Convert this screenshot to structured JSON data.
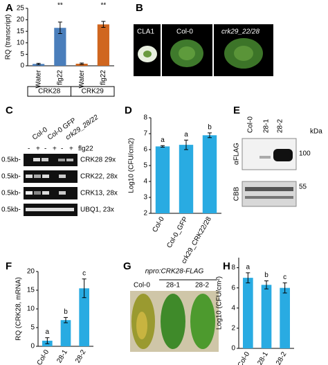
{
  "chart_data": [
    {
      "type": "bar",
      "panel": "A",
      "ylabel": "RQ (transcript)",
      "categories": [
        "Water",
        "flg22",
        "Water",
        "flg22"
      ],
      "groups": [
        "CRK28",
        "CRK29"
      ],
      "values": [
        0.8,
        16.5,
        0.9,
        18
      ],
      "errors": [
        0.3,
        2.5,
        0.3,
        1.3
      ],
      "colors": [
        "#4a7ebb",
        "#4a7ebb",
        "#d0661f",
        "#d0661f"
      ],
      "annotations": [
        {
          "index": 1,
          "text": "**"
        },
        {
          "index": 3,
          "text": "**"
        }
      ],
      "ylim": [
        0,
        25
      ],
      "yticks": [
        0,
        5,
        10,
        15,
        20,
        25
      ]
    },
    {
      "type": "bar",
      "panel": "D",
      "ylabel": "Log10 (CFU/cm2)",
      "categories": [
        "Col-0",
        "Col-0_GFP",
        "crk29_CRK22/28"
      ],
      "values": [
        6.2,
        6.3,
        6.9
      ],
      "errors": [
        0.05,
        0.3,
        0.15
      ],
      "letters": [
        "a",
        "a",
        "b"
      ],
      "color": "#29abe2",
      "ylim": [
        2,
        8
      ],
      "yticks": [
        2,
        3,
        4,
        5,
        6,
        7,
        8
      ]
    },
    {
      "type": "bar",
      "panel": "F",
      "ylabel": "RQ (CRK28, mRNA)",
      "categories": [
        "Col-0",
        "28-1",
        "28-2"
      ],
      "values": [
        1.5,
        7,
        15.5
      ],
      "errors": [
        0.8,
        0.7,
        2.5
      ],
      "letters": [
        "a",
        "b",
        "c"
      ],
      "color": "#29abe2",
      "ylim": [
        0,
        20
      ],
      "yticks": [
        0,
        5,
        10,
        15,
        20
      ]
    },
    {
      "type": "bar",
      "panel": "H",
      "ylabel": "Log10 (CFU/cm²)",
      "categories": [
        "Col-0",
        "28-1",
        "28-2"
      ],
      "values": [
        7,
        6.3,
        6
      ],
      "errors": [
        0.5,
        0.4,
        0.5
      ],
      "letters": [
        "a",
        "b",
        "c"
      ],
      "color": "#29abe2",
      "ylim": [
        0,
        9
      ],
      "yticks": [
        0,
        2,
        4,
        6,
        8
      ]
    }
  ],
  "figure_panels": {
    "B": {
      "letter": "B",
      "labels": [
        "CLA1",
        "Col-0",
        "crk29_22/28"
      ]
    },
    "C": {
      "letter": "C",
      "lines": [
        "Col-0",
        "Col-0 GFP",
        "crk29_28/22"
      ],
      "signs": [
        "-",
        "+",
        "-",
        "+",
        "-",
        "+"
      ],
      "treatment": "flg22",
      "size_marker": "0.5kb-",
      "genes": [
        "CRK28 29x",
        "CRK22, 28x",
        "CRK13, 28x",
        "UBQ1, 23x"
      ]
    },
    "E": {
      "letter": "E",
      "lines": [
        "Col-0",
        "28-1",
        "28-2"
      ],
      "unit": "kDa",
      "rows": [
        "αFLAG",
        "CBB"
      ],
      "markers": [
        "100",
        "55"
      ]
    },
    "G": {
      "letter": "G",
      "construct": "npro:CRK28-FLAG",
      "lines": [
        "Col-0",
        "28-1",
        "28-2"
      ]
    }
  }
}
